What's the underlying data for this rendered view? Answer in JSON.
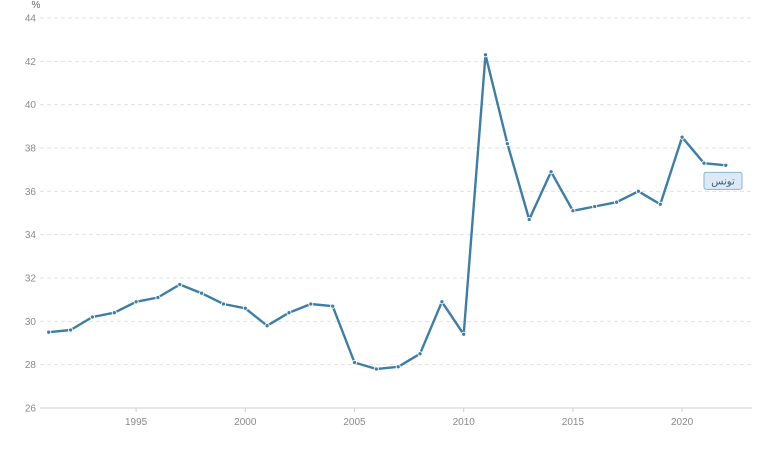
{
  "chart_data": {
    "type": "line",
    "unit": "%",
    "x": [
      1991,
      1992,
      1993,
      1994,
      1995,
      1996,
      1997,
      1998,
      1999,
      2000,
      2001,
      2002,
      2003,
      2004,
      2005,
      2006,
      2007,
      2008,
      2009,
      2010,
      2011,
      2012,
      2013,
      2014,
      2015,
      2016,
      2017,
      2018,
      2019,
      2020,
      2021,
      2022
    ],
    "series": [
      {
        "name": "تونس",
        "color": "#3d7ea6",
        "values": [
          29.5,
          29.6,
          30.2,
          30.4,
          30.9,
          31.1,
          31.7,
          31.3,
          30.8,
          30.6,
          29.8,
          30.4,
          30.8,
          30.7,
          28.1,
          27.8,
          27.9,
          28.5,
          30.9,
          29.4,
          42.3,
          38.2,
          34.7,
          36.9,
          35.1,
          35.3,
          35.5,
          36.0,
          35.4,
          38.5,
          37.3,
          37.2
        ]
      }
    ],
    "xticks": [
      "1995",
      "2000",
      "2005",
      "2010",
      "2015",
      "2020"
    ],
    "yticks": [
      "26",
      "28",
      "30",
      "32",
      "34",
      "36",
      "38",
      "40",
      "42",
      "44"
    ],
    "xlim": [
      1990.6,
      2023.2
    ],
    "ylim": [
      26,
      44
    ],
    "grid": true,
    "legend_position": "right, next to line end",
    "title": "",
    "xlabel": "",
    "ylabel": "%"
  }
}
